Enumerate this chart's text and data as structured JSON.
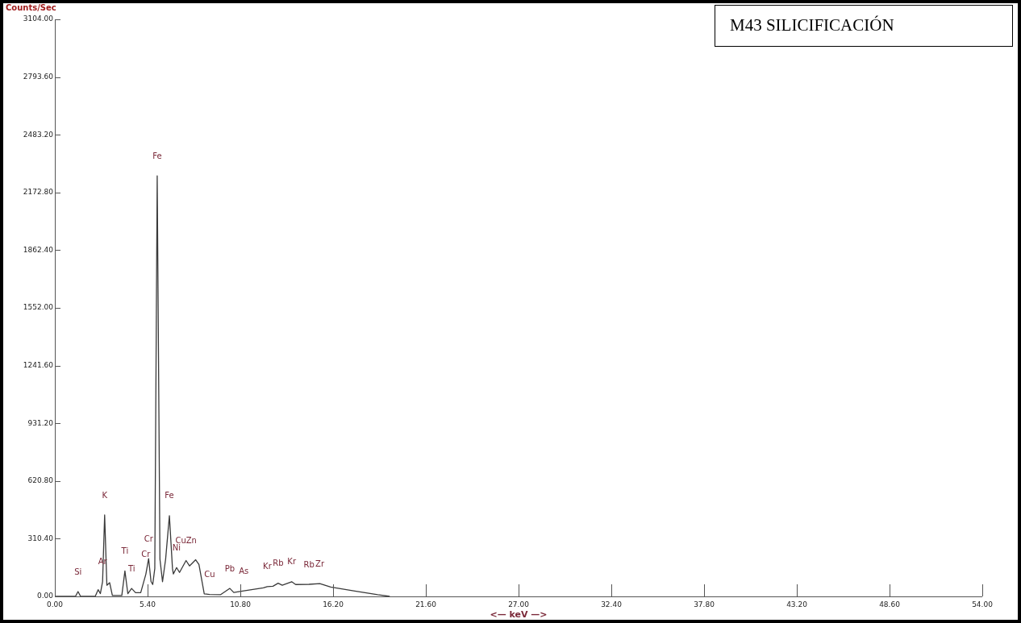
{
  "chart_data": {
    "type": "line",
    "title": "M43 SILICIFICACIÓN",
    "xlabel": "<— keV —>",
    "ylabel": "Counts/Sec",
    "x": [
      0,
      1.2,
      1.35,
      1.5,
      2.35,
      2.52,
      2.65,
      2.78,
      2.9,
      3.03,
      3.19,
      3.35,
      3.9,
      4.08,
      4.25,
      4.47,
      4.7,
      5.0,
      5.3,
      5.46,
      5.6,
      5.7,
      5.82,
      5.96,
      6.12,
      6.27,
      6.45,
      6.67,
      6.85,
      6.9,
      7.09,
      7.26,
      7.64,
      7.84,
      8.2,
      8.39,
      8.7,
      9.01,
      9.64,
      10.19,
      10.42,
      11.0,
      12.14,
      12.37,
      12.7,
      13.0,
      13.24,
      13.79,
      14.02,
      14.8,
      15.43,
      16.06,
      17.47,
      18.8,
      19.5
    ],
    "series": [
      {
        "color": "#3a3a3a",
        "values": [
          0,
          0,
          26,
          0,
          0,
          36,
          15,
          80,
          438,
          60,
          74,
          5,
          5,
          137,
          15,
          43,
          20,
          20,
          120,
          203,
          80,
          64,
          150,
          2262,
          200,
          79,
          200,
          434,
          150,
          121,
          155,
          129,
          193,
          164,
          197,
          172,
          14,
          10,
          9,
          43,
          21,
          30,
          46,
          53,
          55,
          71,
          60,
          79,
          64,
          65,
          69,
          50,
          29,
          9,
          0
        ]
      }
    ],
    "xlim": [
      0,
      54
    ],
    "ylim": [
      0,
      3104
    ],
    "xticks": [
      {
        "value": 0,
        "label": "0.00"
      },
      {
        "value": 5.4,
        "label": "5.40"
      },
      {
        "value": 10.8,
        "label": "10.80"
      },
      {
        "value": 16.2,
        "label": "16.20"
      },
      {
        "value": 21.6,
        "label": "21.60"
      },
      {
        "value": 27,
        "label": "27.00"
      },
      {
        "value": 32.4,
        "label": "32.40"
      },
      {
        "value": 37.8,
        "label": "37.80"
      },
      {
        "value": 43.2,
        "label": "43.20"
      },
      {
        "value": 48.6,
        "label": "48.60"
      },
      {
        "value": 54,
        "label": "54.00"
      }
    ],
    "yticks": [
      {
        "value": 0,
        "label": "0.00"
      },
      {
        "value": 310.4,
        "label": "310.40"
      },
      {
        "value": 620.8,
        "label": "620.80"
      },
      {
        "value": 931.2,
        "label": "931.20"
      },
      {
        "value": 1241.6,
        "label": "1241.60"
      },
      {
        "value": 1552,
        "label": "1552.00"
      },
      {
        "value": 1862.4,
        "label": "1862.40"
      },
      {
        "value": 2172.8,
        "label": "2172.80"
      },
      {
        "value": 2483.2,
        "label": "2483.20"
      },
      {
        "value": 2793.6,
        "label": "2793.60"
      },
      {
        "value": 3104,
        "label": "3104.00"
      }
    ],
    "grid": false,
    "legend": false,
    "marker": "none",
    "line_style": "solid",
    "annotations": [
      {
        "text": "Si",
        "x": 1.35,
        "y": 26
      },
      {
        "text": "Ar",
        "x": 2.78,
        "y": 80
      },
      {
        "text": "K",
        "x": 2.9,
        "y": 438
      },
      {
        "text": "Ti",
        "x": 4.08,
        "y": 137
      },
      {
        "text": "Ti",
        "x": 4.47,
        "y": 43
      },
      {
        "text": "Cr",
        "x": 5.3,
        "y": 120
      },
      {
        "text": "Cr",
        "x": 5.46,
        "y": 203
      },
      {
        "text": "Fe",
        "x": 5.96,
        "y": 2262
      },
      {
        "text": "Fe",
        "x": 6.67,
        "y": 434
      },
      {
        "text": "Ni",
        "x": 7.09,
        "y": 155
      },
      {
        "text": "CuZn",
        "x": 7.64,
        "y": 193
      },
      {
        "text": "Cu",
        "x": 9.01,
        "y": 10
      },
      {
        "text": "Pb",
        "x": 10.19,
        "y": 43
      },
      {
        "text": "As",
        "x": 11.0,
        "y": 30
      },
      {
        "text": "Kr",
        "x": 12.37,
        "y": 53
      },
      {
        "text": "Rb",
        "x": 13.0,
        "y": 71
      },
      {
        "text": "Kr",
        "x": 13.79,
        "y": 79
      },
      {
        "text": "Rb",
        "x": 14.8,
        "y": 65
      },
      {
        "text": "Zr",
        "x": 15.43,
        "y": 69
      }
    ]
  }
}
